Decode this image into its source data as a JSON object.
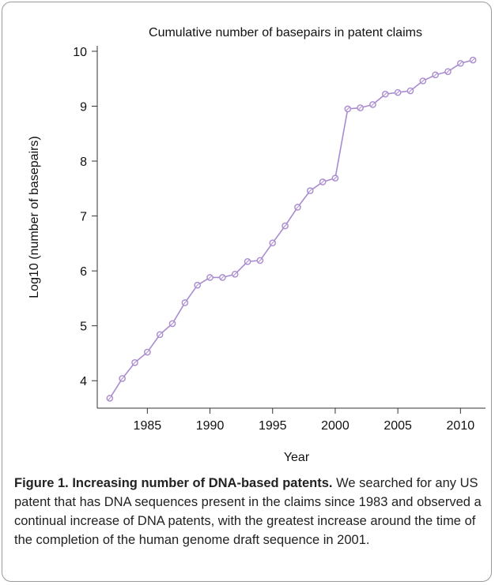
{
  "chart_data": {
    "type": "line",
    "title": "Cumulative number of basepairs in patent claims",
    "xlabel": "Year",
    "ylabel": "Log10 (number of basepairs)",
    "xlim": [
      1981,
      2012
    ],
    "ylim": [
      3.5,
      10.1
    ],
    "xticks": [
      1985,
      1990,
      1995,
      2000,
      2005,
      2010
    ],
    "yticks": [
      4,
      5,
      6,
      7,
      8,
      9,
      10
    ],
    "grid": false,
    "series": [
      {
        "color": "#a98bd0",
        "x": [
          1982,
          1983,
          1984,
          1985,
          1986,
          1987,
          1988,
          1989,
          1990,
          1991,
          1992,
          1993,
          1994,
          1995,
          1996,
          1997,
          1998,
          1999,
          2000,
          2001,
          2002,
          2003,
          2004,
          2005,
          2006,
          2007,
          2008,
          2009,
          2010,
          2011
        ],
        "values": [
          3.68,
          4.04,
          4.33,
          4.52,
          4.84,
          5.04,
          5.42,
          5.74,
          5.88,
          5.88,
          5.94,
          6.17,
          6.19,
          6.51,
          6.82,
          7.16,
          7.46,
          7.62,
          7.69,
          8.95,
          8.97,
          9.03,
          9.22,
          9.25,
          9.28,
          9.46,
          9.57,
          9.63,
          9.78,
          9.84
        ]
      }
    ]
  },
  "caption": {
    "title": "Figure 1. Increasing number of DNA-based patents.",
    "text": " We searched for any US patent that has DNA sequences present in the claims since 1983 and observed a continual increase of DNA patents, with the greatest increase around the time of the completion of the human genome draft sequence in 2001."
  }
}
